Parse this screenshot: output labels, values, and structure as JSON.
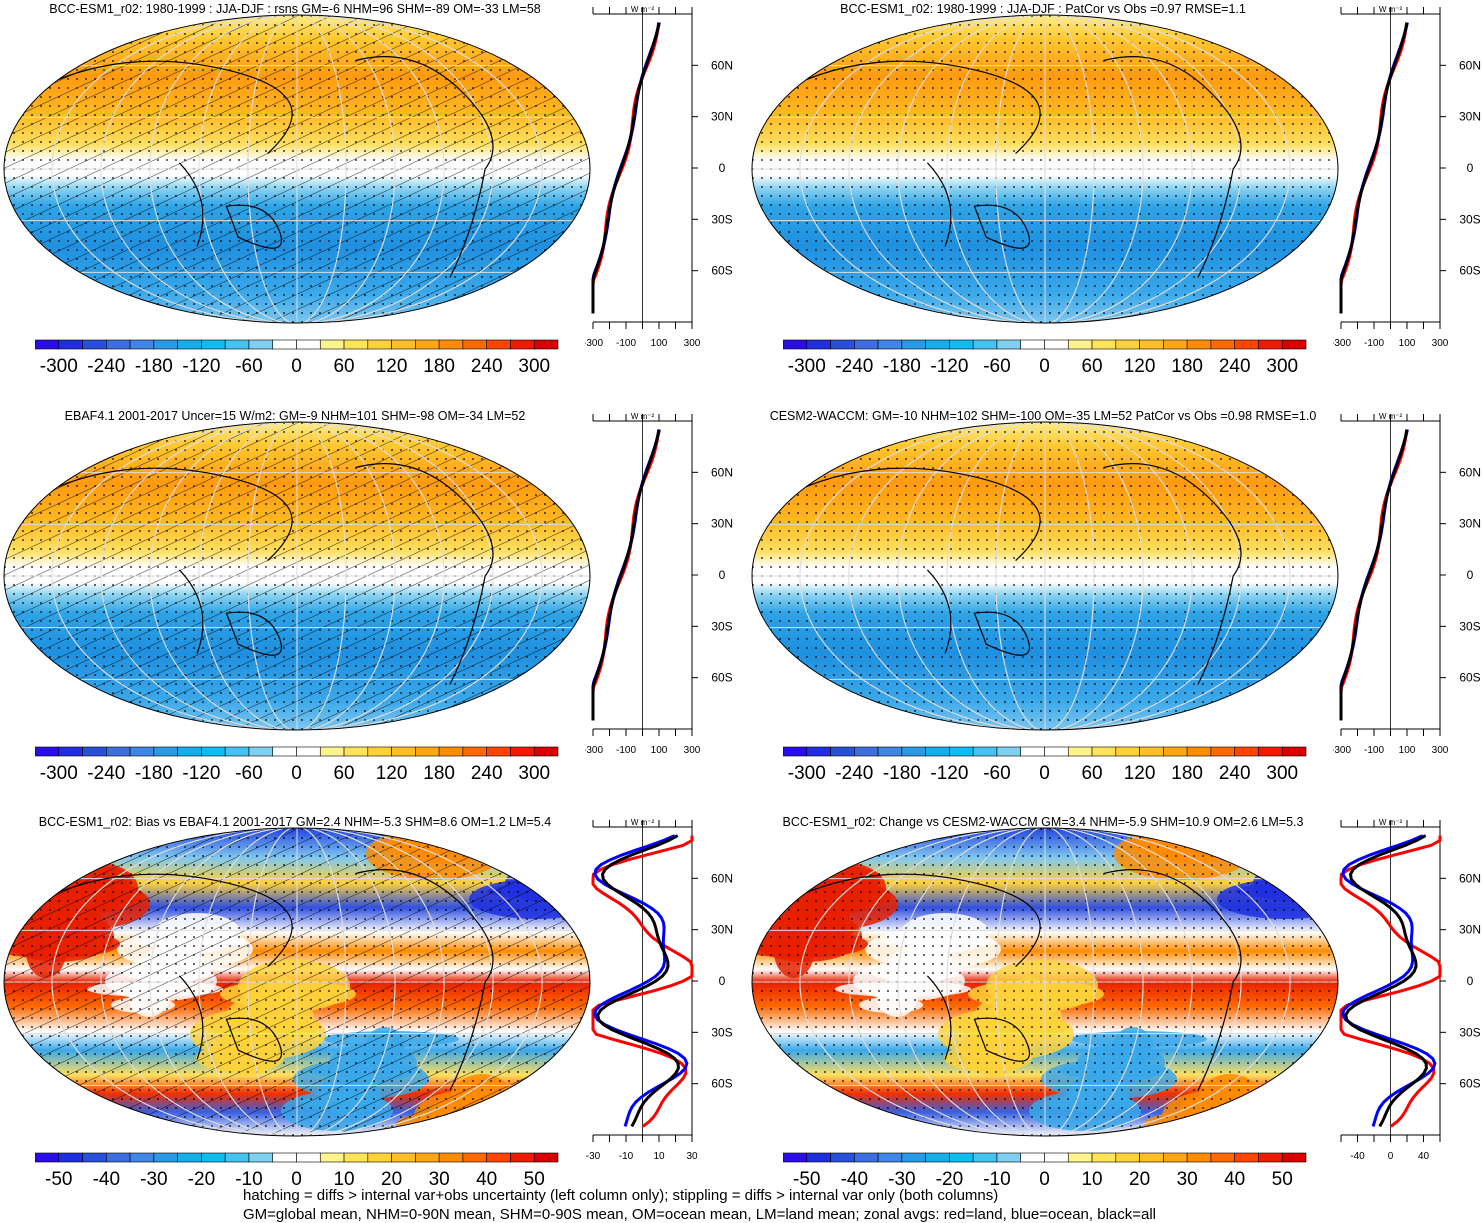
{
  "panels": [
    {
      "title": "BCC-ESM1_r02: 1980-1999 : JJA-DJF : rsns GM=-6 NHM=96 SHM=-89 OM=-33 LM=58",
      "kind": "mean",
      "hatch": true,
      "zonal_ticks": [
        "-300",
        "-100",
        "100",
        "300"
      ],
      "zonal_range": [
        -300,
        300
      ],
      "cbar_labels": [
        "-300",
        "-240",
        "-180",
        "-120",
        "-60",
        "0",
        "60",
        "120",
        "180",
        "240",
        "300"
      ]
    },
    {
      "title": "BCC-ESM1_r02: 1980-1999 : JJA-DJF : PatCor vs Obs =0.97 RMSE=1.1",
      "kind": "mean",
      "hatch": false,
      "zonal_ticks": [
        "-300",
        "-100",
        "100",
        "300"
      ],
      "zonal_range": [
        -300,
        300
      ],
      "cbar_labels": [
        "-300",
        "-240",
        "-180",
        "-120",
        "-60",
        "0",
        "60",
        "120",
        "180",
        "240",
        "300"
      ]
    },
    {
      "title": "EBAF4.1 2001-2017 Uncer=15 W/m2: GM=-9 NHM=101 SHM=-98 OM=-34 LM=52",
      "kind": "mean",
      "hatch": true,
      "zonal_ticks": [
        "-300",
        "-100",
        "100",
        "300"
      ],
      "zonal_range": [
        -300,
        300
      ],
      "cbar_labels": [
        "-300",
        "-240",
        "-180",
        "-120",
        "-60",
        "0",
        "60",
        "120",
        "180",
        "240",
        "300"
      ]
    },
    {
      "title": "CESM2-WACCM: GM=-10 NHM=102 SHM=-100 OM=-35 LM=52 PatCor vs Obs =0.98 RMSE=1.0",
      "kind": "mean",
      "hatch": false,
      "zonal_ticks": [
        "-300",
        "-100",
        "100",
        "300"
      ],
      "zonal_range": [
        -300,
        300
      ],
      "cbar_labels": [
        "-300",
        "-240",
        "-180",
        "-120",
        "-60",
        "0",
        "60",
        "120",
        "180",
        "240",
        "300"
      ]
    },
    {
      "title": "BCC-ESM1_r02: Bias vs EBAF4.1 2001-2017 GM=2.4 NHM=-5.3 SHM=8.6 OM=1.2 LM=5.4",
      "kind": "diff",
      "hatch": true,
      "zonal_ticks": [
        "-30",
        "-10",
        "10",
        "30"
      ],
      "zonal_range": [
        -30,
        30
      ],
      "cbar_labels": [
        "-50",
        "-40",
        "-30",
        "-20",
        "-10",
        "0",
        "10",
        "20",
        "30",
        "40",
        "50"
      ]
    },
    {
      "title": "BCC-ESM1_r02: Change vs CESM2-WACCM GM=3.4 NHM=-5.9 SHM=10.9 OM=2.6 LM=5.3",
      "kind": "diff",
      "hatch": false,
      "zonal_ticks": [
        "-40",
        "0",
        "40"
      ],
      "zonal_range": [
        -55,
        55
      ],
      "cbar_labels": [
        "-50",
        "-40",
        "-30",
        "-20",
        "-10",
        "0",
        "10",
        "20",
        "30",
        "40",
        "50"
      ]
    }
  ],
  "zonal_units": "W m⁻²",
  "lat_labels": [
    "60N",
    "30N",
    "0",
    "30S",
    "60S"
  ],
  "colors": {
    "cbar": [
      "#2a0ce8",
      "#1f2fe0",
      "#2850d8",
      "#3c6ee0",
      "#3f86e6",
      "#2a9ae6",
      "#16aee8",
      "#0fbcef",
      "#45c2f0",
      "#7fd0f0",
      "#ffffff",
      "#ffffff",
      "#fff48c",
      "#ffe45a",
      "#ffd23a",
      "#ffbe28",
      "#ffa614",
      "#ff8c00",
      "#ff6a00",
      "#ff4400",
      "#f01a00",
      "#d80000"
    ]
  },
  "footer": {
    "line1": "hatching = diffs > internal var+obs uncertainty (left column only); stippling = diffs > internal var only (both columns)",
    "line2": "GM=global mean, NHM=0-90N mean, SHM=0-90S mean, OM=ocean mean, LM=land mean; zonal avgs: red=land, blue=ocean, black=all"
  }
}
